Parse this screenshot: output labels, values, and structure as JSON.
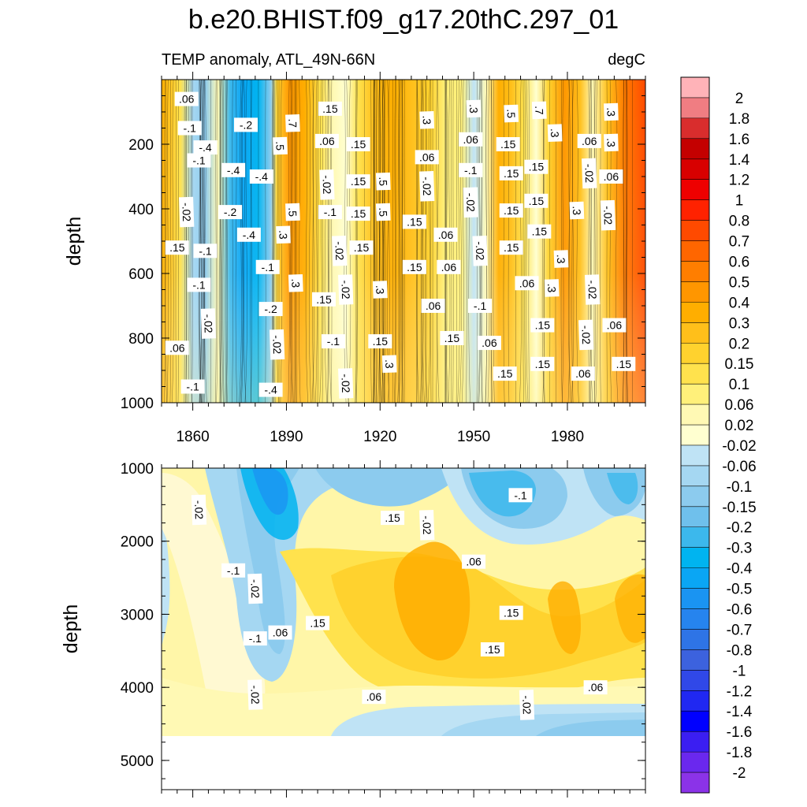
{
  "title": "b.e20.BHIST.f09_g17.20thC.297_01",
  "left_subtitle": "TEMP anomaly, ATL_49N-66N",
  "right_subtitle": "degC",
  "chart_data": {
    "type": "heatmap",
    "x_domain": [
      1850,
      2005
    ],
    "x_ticks": [
      1860,
      1890,
      1920,
      1950,
      1980
    ],
    "colorbar": {
      "levels": [
        "2",
        "1.8",
        "1.6",
        "1.4",
        "1.2",
        "1",
        "0.8",
        "0.7",
        "0.6",
        "0.5",
        "0.4",
        "0.3",
        "0.2",
        "0.15",
        "0.1",
        "0.06",
        "0.02",
        "-0.02",
        "-0.06",
        "-0.1",
        "-0.15",
        "-0.2",
        "-0.3",
        "-0.4",
        "-0.5",
        "-0.6",
        "-0.7",
        "-0.8",
        "-1",
        "-1.2",
        "-1.4",
        "-1.6",
        "-1.8",
        "-2"
      ],
      "colors": [
        "#ffb3b8",
        "#f07d82",
        "#d92d2d",
        "#c40000",
        "#d80000",
        "#ee0000",
        "#ff2200",
        "#ff4a00",
        "#ff6600",
        "#ff7e00",
        "#ff9600",
        "#ffae00",
        "#ffbf1a",
        "#ffd22e",
        "#ffe24d",
        "#fff07a",
        "#fff9b4",
        "#ffffd0",
        "#bfe3f5",
        "#a5d7f2",
        "#8ccbee",
        "#6fc0ec",
        "#3cb8ec",
        "#00b4f0",
        "#0aa6f4",
        "#1a94f2",
        "#2684ee",
        "#2e74e6",
        "#3c62de",
        "#3048e8",
        "#2028f2",
        "#0000ff",
        "#3b1ef2",
        "#6a28ee",
        "#8b33e8"
      ],
      "unit": "degC"
    },
    "upper_panel": {
      "ylabel": "depth",
      "ylim": [
        0,
        1000
      ],
      "y_ticks": [
        200,
        400,
        600,
        800,
        1000
      ],
      "regimes": [
        {
          "year": 1850,
          "val": 0.35
        },
        {
          "year": 1856,
          "val": 0.15
        },
        {
          "year": 1860,
          "val": -0.06
        },
        {
          "year": 1864,
          "val": -0.12
        },
        {
          "year": 1868,
          "val": 0.04
        },
        {
          "year": 1872,
          "val": -0.25
        },
        {
          "year": 1876,
          "val": -0.4
        },
        {
          "year": 1881,
          "val": -0.35
        },
        {
          "year": 1885,
          "val": -0.1
        },
        {
          "year": 1887,
          "val": 0.2
        },
        {
          "year": 1891,
          "val": 0.5
        },
        {
          "year": 1896,
          "val": 0.35
        },
        {
          "year": 1901,
          "val": 0.15
        },
        {
          "year": 1905,
          "val": 0.04
        },
        {
          "year": 1909,
          "val": 0.0
        },
        {
          "year": 1913,
          "val": 0.15
        },
        {
          "year": 1918,
          "val": 0.3
        },
        {
          "year": 1924,
          "val": 0.4
        },
        {
          "year": 1930,
          "val": 0.3
        },
        {
          "year": 1936,
          "val": 0.2
        },
        {
          "year": 1941,
          "val": 0.1
        },
        {
          "year": 1946,
          "val": 0.08
        },
        {
          "year": 1950,
          "val": -0.05
        },
        {
          "year": 1954,
          "val": 0.06
        },
        {
          "year": 1958,
          "val": 0.35
        },
        {
          "year": 1962,
          "val": 0.25
        },
        {
          "year": 1966,
          "val": 0.15
        },
        {
          "year": 1970,
          "val": 0.0
        },
        {
          "year": 1974,
          "val": 0.2
        },
        {
          "year": 1979,
          "val": 0.45
        },
        {
          "year": 1984,
          "val": 0.25
        },
        {
          "year": 1988,
          "val": 0.06
        },
        {
          "year": 1993,
          "val": 0.3
        },
        {
          "year": 1998,
          "val": 0.55
        },
        {
          "year": 2005,
          "val": 0.8
        }
      ],
      "contour_labels": [
        {
          "text": ".06",
          "year": 1858,
          "depth": 60
        },
        {
          "text": "-.1",
          "year": 1859,
          "depth": 150
        },
        {
          "text": "-.1",
          "year": 1862,
          "depth": 250
        },
        {
          "text": "-.2",
          "year": 1877,
          "depth": 140
        },
        {
          "text": "-.4",
          "year": 1864,
          "depth": 210
        },
        {
          "text": "-.4",
          "year": 1873,
          "depth": 280
        },
        {
          "text": "-.4",
          "year": 1882,
          "depth": 300
        },
        {
          "text": "-.02",
          "year": 1858,
          "depth": 410
        },
        {
          "text": "-.2",
          "year": 1872,
          "depth": 410
        },
        {
          "text": "-.4",
          "year": 1878,
          "depth": 480
        },
        {
          "text": ".15",
          "year": 1855,
          "depth": 520
        },
        {
          "text": "-.1",
          "year": 1864,
          "depth": 530
        },
        {
          "text": "-.1",
          "year": 1884,
          "depth": 580
        },
        {
          "text": "-.1",
          "year": 1862,
          "depth": 635
        },
        {
          "text": "-.02",
          "year": 1865,
          "depth": 755
        },
        {
          "text": ".06",
          "year": 1855,
          "depth": 830
        },
        {
          "text": "-.1",
          "year": 1860,
          "depth": 950
        },
        {
          "text": "-.2",
          "year": 1885,
          "depth": 710
        },
        {
          "text": "-.02",
          "year": 1887,
          "depth": 820
        },
        {
          "text": "-.4",
          "year": 1885,
          "depth": 960
        },
        {
          "text": ".15",
          "year": 1904,
          "depth": 90
        },
        {
          "text": ".7",
          "year": 1892,
          "depth": 135
        },
        {
          "text": ".5",
          "year": 1888,
          "depth": 205
        },
        {
          "text": ".06",
          "year": 1903,
          "depth": 190
        },
        {
          "text": ".15",
          "year": 1913,
          "depth": 200
        },
        {
          "text": "-.02",
          "year": 1903,
          "depth": 325
        },
        {
          "text": ".15",
          "year": 1913,
          "depth": 315
        },
        {
          "text": ".5",
          "year": 1921,
          "depth": 315
        },
        {
          "text": "-.1",
          "year": 1904,
          "depth": 410
        },
        {
          "text": ".5",
          "year": 1892,
          "depth": 410
        },
        {
          "text": ".15",
          "year": 1913,
          "depth": 415
        },
        {
          "text": ".5",
          "year": 1921,
          "depth": 410
        },
        {
          "text": ".3",
          "year": 1889,
          "depth": 480
        },
        {
          "text": "-.02",
          "year": 1907,
          "depth": 530
        },
        {
          "text": ".15",
          "year": 1914,
          "depth": 520
        },
        {
          "text": ".3",
          "year": 1893,
          "depth": 630
        },
        {
          "text": ".15",
          "year": 1902,
          "depth": 680
        },
        {
          "text": "-.02",
          "year": 1909,
          "depth": 650
        },
        {
          "text": ".3",
          "year": 1920,
          "depth": 650
        },
        {
          "text": "-.1",
          "year": 1905,
          "depth": 810
        },
        {
          "text": ".15",
          "year": 1920,
          "depth": 810
        },
        {
          "text": ".3",
          "year": 1923,
          "depth": 880
        },
        {
          "text": "-.02",
          "year": 1909,
          "depth": 940
        },
        {
          "text": ".3",
          "year": 1935,
          "depth": 125
        },
        {
          "text": ".06",
          "year": 1935,
          "depth": 240
        },
        {
          "text": "-.02",
          "year": 1935,
          "depth": 330
        },
        {
          "text": ".15",
          "year": 1931,
          "depth": 440
        },
        {
          "text": ".06",
          "year": 1941,
          "depth": 480
        },
        {
          "text": ".15",
          "year": 1931,
          "depth": 580
        },
        {
          "text": ".06",
          "year": 1942,
          "depth": 580
        },
        {
          "text": ".06",
          "year": 1937,
          "depth": 700
        },
        {
          "text": ".15",
          "year": 1943,
          "depth": 800
        },
        {
          "text": ".3",
          "year": 1950,
          "depth": 90
        },
        {
          "text": ".06",
          "year": 1949,
          "depth": 185
        },
        {
          "text": "-.1",
          "year": 1949,
          "depth": 280
        },
        {
          "text": "-.02",
          "year": 1949,
          "depth": 380
        },
        {
          "text": "-.02",
          "year": 1952,
          "depth": 530
        },
        {
          "text": "-.1",
          "year": 1952,
          "depth": 700
        },
        {
          "text": ".06",
          "year": 1955,
          "depth": 815
        },
        {
          "text": ".15",
          "year": 1960,
          "depth": 910
        },
        {
          "text": ".5",
          "year": 1962,
          "depth": 105
        },
        {
          "text": ".15",
          "year": 1961,
          "depth": 200
        },
        {
          "text": ".15",
          "year": 1962,
          "depth": 290
        },
        {
          "text": ".15",
          "year": 1962,
          "depth": 405
        },
        {
          "text": ".15",
          "year": 1962,
          "depth": 520
        },
        {
          "text": ".7",
          "year": 1971,
          "depth": 95
        },
        {
          "text": ".15",
          "year": 1970,
          "depth": 270
        },
        {
          "text": ".15",
          "year": 1970,
          "depth": 375
        },
        {
          "text": ".15",
          "year": 1971,
          "depth": 470
        },
        {
          "text": ".06",
          "year": 1967,
          "depth": 630
        },
        {
          "text": ".15",
          "year": 1972,
          "depth": 760
        },
        {
          "text": ".15",
          "year": 1972,
          "depth": 880
        },
        {
          "text": ".3",
          "year": 1976,
          "depth": 165
        },
        {
          "text": ".06",
          "year": 1987,
          "depth": 190
        },
        {
          "text": "-.02",
          "year": 1987,
          "depth": 290
        },
        {
          "text": ".3",
          "year": 1983,
          "depth": 405
        },
        {
          "text": ".3",
          "year": 1978,
          "depth": 555
        },
        {
          "text": ".3",
          "year": 1975,
          "depth": 645
        },
        {
          "text": "-.02",
          "year": 1988,
          "depth": 650
        },
        {
          "text": "-.02",
          "year": 1986,
          "depth": 790
        },
        {
          "text": ".06",
          "year": 1985,
          "depth": 910
        },
        {
          "text": ".3",
          "year": 1994,
          "depth": 100
        },
        {
          "text": ".3",
          "year": 1994,
          "depth": 195
        },
        {
          "text": ".06",
          "year": 1994,
          "depth": 300
        },
        {
          "text": "-.02",
          "year": 1993,
          "depth": 420
        },
        {
          "text": ".06",
          "year": 1995,
          "depth": 760
        },
        {
          "text": ".15",
          "year": 1998,
          "depth": 880
        }
      ]
    },
    "lower_panel": {
      "ylabel": "depth",
      "ylim": [
        1000,
        5400
      ],
      "y_ticks": [
        1000,
        2000,
        3000,
        4000,
        5000
      ],
      "bottom_of_data": 4620,
      "contour_labels": [
        {
          "text": "-.02",
          "year": 1862,
          "depth": 1570
        },
        {
          "text": "-.1",
          "year": 1873,
          "depth": 2400
        },
        {
          "text": "-.02",
          "year": 1880,
          "depth": 2650
        },
        {
          "text": "-.1",
          "year": 1880,
          "depth": 3330
        },
        {
          "text": ".06",
          "year": 1888,
          "depth": 3250
        },
        {
          "text": ".15",
          "year": 1900,
          "depth": 3120
        },
        {
          "text": ".15",
          "year": 1924,
          "depth": 1680
        },
        {
          "text": "-.02",
          "year": 1935,
          "depth": 1780
        },
        {
          "text": ".06",
          "year": 1950,
          "depth": 2280
        },
        {
          "text": "-.1",
          "year": 1965,
          "depth": 1370
        },
        {
          "text": ".15",
          "year": 1962,
          "depth": 2980
        },
        {
          "text": ".15",
          "year": 1956,
          "depth": 3480
        },
        {
          "text": "-.02",
          "year": 1880,
          "depth": 4100
        },
        {
          "text": ".06",
          "year": 1918,
          "depth": 4130
        },
        {
          "text": "-.02",
          "year": 1967,
          "depth": 4240
        },
        {
          "text": ".06",
          "year": 1989,
          "depth": 4000
        }
      ]
    }
  }
}
